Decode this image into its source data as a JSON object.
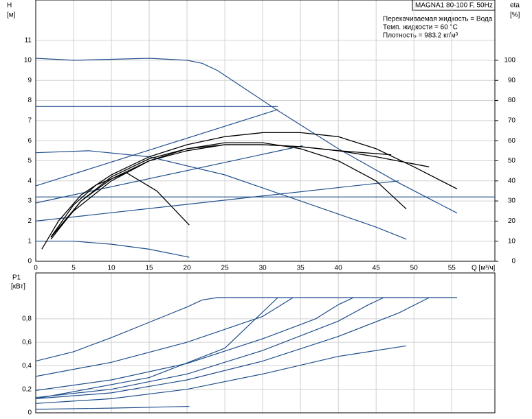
{
  "chart_data": [
    {
      "type": "line",
      "title": "MAGNA1 80-100 F, 50Hz",
      "annotations": [
        "Перекачиваемая жидкость = Вода",
        "Темп. жидкости = 60 °C",
        "Плотность = 983.2 кг/м³"
      ],
      "xlabel": "Q [м³/ч]",
      "ylabel": "H",
      "yunit": "[м]",
      "y2label": "eta",
      "y2unit": "[%]",
      "xlim": [
        0,
        60.7
      ],
      "xticks": [
        0,
        5,
        10,
        15,
        20,
        25,
        30,
        35,
        40,
        45,
        50,
        55
      ],
      "ylim": [
        0,
        13
      ],
      "yticks": [
        0,
        1,
        2,
        3,
        4,
        5,
        6,
        7,
        8,
        9,
        10,
        11
      ],
      "y2lim": [
        0,
        130
      ],
      "y2ticks": [
        0,
        10,
        20,
        30,
        40,
        50,
        60,
        70,
        80,
        90,
        100
      ],
      "grid": true,
      "series": [
        {
          "color": "#1f4e8c",
          "x": [
            0,
            5,
            10,
            15,
            20,
            22,
            24,
            28,
            32,
            40,
            48,
            55.7
          ],
          "values": [
            10.1,
            10.0,
            10.05,
            10.1,
            10.0,
            9.85,
            9.5,
            8.5,
            7.5,
            5.6,
            3.9,
            2.4
          ]
        },
        {
          "color": "#1f4e8c",
          "x": [
            0,
            32
          ],
          "values": [
            7.7,
            7.7
          ]
        },
        {
          "color": "#1f4e8c",
          "x": [
            0,
            32
          ],
          "values": [
            3.75,
            7.55
          ]
        },
        {
          "color": "#1f4e8c",
          "x": [
            0,
            35.3
          ],
          "values": [
            2.9,
            5.75
          ]
        },
        {
          "color": "#1f4e8c",
          "x": [
            0,
            48
          ],
          "values": [
            2.0,
            4.0
          ]
        },
        {
          "color": "#1f4e8c",
          "x": [
            0,
            60.7
          ],
          "values": [
            3.2,
            3.2
          ]
        },
        {
          "color": "#1f4e8c",
          "x": [
            0,
            7,
            15,
            25,
            35,
            45,
            49
          ],
          "values": [
            5.4,
            5.5,
            5.2,
            4.3,
            3.0,
            1.7,
            1.1
          ]
        },
        {
          "color": "#1f4e8c",
          "x": [
            0,
            5,
            10,
            15,
            20.3
          ],
          "values": [
            1.0,
            1.0,
            0.85,
            0.6,
            0.2
          ]
        },
        {
          "color": "#000000",
          "axis": "y2",
          "x": [
            0.8,
            3,
            6,
            10,
            15,
            20,
            25,
            30,
            35,
            40,
            45,
            50,
            55.7
          ],
          "values": [
            6,
            20,
            33,
            43,
            52,
            58,
            62,
            64,
            64,
            62,
            56,
            47,
            36
          ]
        },
        {
          "color": "#000000",
          "axis": "y2",
          "x": [
            2,
            5,
            10,
            15,
            20,
            25,
            30,
            35,
            40,
            45,
            49
          ],
          "values": [
            12,
            25,
            40,
            50,
            56,
            59,
            59,
            56,
            50,
            40,
            26
          ]
        },
        {
          "color": "#000000",
          "axis": "y2",
          "x": [
            2,
            5,
            8,
            12,
            16,
            20.3
          ],
          "values": [
            12,
            28,
            38,
            44,
            35,
            18
          ]
        },
        {
          "color": "#000000",
          "axis": "y2",
          "x": [
            2,
            6,
            10,
            15,
            20,
            25,
            30,
            35,
            40,
            45,
            52
          ],
          "values": [
            12,
            30,
            42,
            51,
            56,
            58,
            58,
            57,
            55,
            52,
            47
          ]
        },
        {
          "color": "#000000",
          "axis": "y2",
          "x": [
            2,
            6,
            10,
            15,
            20,
            25,
            30,
            35,
            40,
            47
          ],
          "values": [
            11,
            30,
            41,
            50,
            55,
            58,
            58,
            57,
            55,
            53
          ]
        }
      ]
    },
    {
      "type": "line",
      "ylabel": "P1",
      "yunit": "[кВт]",
      "xlim": [
        0,
        60.7
      ],
      "ylim": [
        0,
        1.19
      ],
      "yticks": [
        0,
        {
          "value": 0.2,
          "label": "0,2"
        },
        {
          "value": 0.4,
          "label": "0,4"
        },
        {
          "value": 0.6,
          "label": "0,6"
        },
        {
          "value": 0.8,
          "label": "0,8"
        }
      ],
      "grid": true,
      "series": [
        {
          "color": "#1f4e8c",
          "x": [
            0,
            5,
            10,
            15,
            20,
            22,
            24,
            55.7
          ],
          "values": [
            0.44,
            0.52,
            0.64,
            0.77,
            0.9,
            0.96,
            0.98,
            0.98
          ]
        },
        {
          "color": "#1f4e8c",
          "x": [
            0,
            10,
            20,
            30,
            32,
            34
          ],
          "values": [
            0.31,
            0.43,
            0.6,
            0.82,
            0.9,
            0.98
          ]
        },
        {
          "color": "#1f4e8c",
          "x": [
            0,
            10,
            20,
            30,
            37,
            40,
            42
          ],
          "values": [
            0.19,
            0.28,
            0.42,
            0.63,
            0.8,
            0.92,
            0.98
          ]
        },
        {
          "color": "#1f4e8c",
          "x": [
            0,
            10,
            20,
            30,
            40,
            44,
            46
          ],
          "values": [
            0.13,
            0.2,
            0.33,
            0.53,
            0.78,
            0.92,
            0.98
          ]
        },
        {
          "color": "#1f4e8c",
          "x": [
            0,
            10,
            20,
            30,
            40,
            48,
            52
          ],
          "values": [
            0.12,
            0.17,
            0.28,
            0.44,
            0.65,
            0.85,
            0.98
          ]
        },
        {
          "color": "#1f4e8c",
          "x": [
            0,
            10,
            20,
            30,
            40,
            49
          ],
          "values": [
            0.08,
            0.12,
            0.2,
            0.33,
            0.48,
            0.57
          ]
        },
        {
          "color": "#1f4e8c",
          "x": [
            0,
            15,
            25,
            32
          ],
          "values": [
            0.12,
            0.3,
            0.55,
            0.98
          ]
        },
        {
          "color": "#1f4e8c",
          "x": [
            0,
            10,
            20.3
          ],
          "values": [
            0.03,
            0.04,
            0.055
          ]
        }
      ]
    }
  ]
}
